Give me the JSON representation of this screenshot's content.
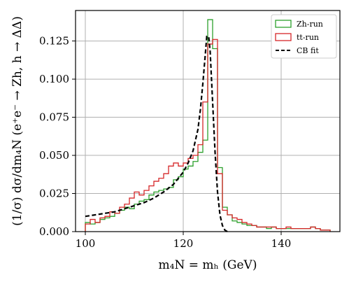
{
  "chart_data": {
    "type": "line",
    "xlabel": "m₄N = mₕ (GeV)",
    "ylabel": "(1/σ) dσ/dm₄N (e⁺e⁻ → Zh, h → ΔΔ)",
    "xlim": [
      98,
      152
    ],
    "ylim": [
      0,
      0.145
    ],
    "x_ticks": [
      100,
      120,
      140
    ],
    "x_tick_labels": [
      "100",
      "120",
      "140"
    ],
    "y_ticks": [
      0,
      0.025,
      0.05,
      0.075,
      0.1,
      0.125
    ],
    "y_tick_labels": [
      "0.000",
      "0.025",
      "0.050",
      "0.075",
      "0.100",
      "0.125"
    ],
    "grid": true,
    "legend_position": "top-right",
    "bin_width": 1,
    "bin_start": 100,
    "colors": {
      "zh": "#2ca02c",
      "tt": "#d62728",
      "cb": "#000000"
    },
    "series": [
      {
        "name": "Zh-run",
        "style": "step",
        "values": [
          0.006,
          0.005,
          0.006,
          0.008,
          0.009,
          0.01,
          0.012,
          0.014,
          0.016,
          0.015,
          0.018,
          0.02,
          0.021,
          0.024,
          0.026,
          0.027,
          0.028,
          0.029,
          0.034,
          0.036,
          0.041,
          0.043,
          0.046,
          0.052,
          0.06,
          0.139,
          0.12,
          0.042,
          0.016,
          0.011,
          0.007,
          0.006,
          0.005,
          0.004,
          0.004,
          0.003,
          0.003,
          0.002,
          0.003,
          0.002,
          0.002,
          0.002,
          0.002,
          0.002,
          0.002,
          0.002,
          0.003,
          0.002,
          0.001,
          0.001
        ]
      },
      {
        "name": "tt-run",
        "style": "step",
        "values": [
          0.005,
          0.008,
          0.006,
          0.009,
          0.01,
          0.013,
          0.012,
          0.016,
          0.018,
          0.022,
          0.026,
          0.024,
          0.027,
          0.03,
          0.033,
          0.035,
          0.038,
          0.043,
          0.045,
          0.043,
          0.045,
          0.048,
          0.05,
          0.057,
          0.085,
          0.123,
          0.126,
          0.038,
          0.014,
          0.011,
          0.009,
          0.008,
          0.006,
          0.005,
          0.004,
          0.003,
          0.003,
          0.003,
          0.003,
          0.002,
          0.002,
          0.003,
          0.002,
          0.002,
          0.002,
          0.002,
          0.003,
          0.002,
          0.001,
          0.001
        ]
      },
      {
        "name": "CB fit",
        "style": "dashed",
        "x": [
          100,
          102,
          104,
          106,
          108,
          110,
          112,
          114,
          116,
          118,
          119,
          120,
          121,
          122,
          123,
          123.5,
          124,
          124.5,
          124.8,
          125.2,
          125.5,
          126,
          126.5,
          127,
          127.5,
          128,
          128.5,
          129
        ],
        "y": [
          0.01,
          0.011,
          0.012,
          0.013,
          0.015,
          0.017,
          0.019,
          0.022,
          0.026,
          0.031,
          0.035,
          0.039,
          0.045,
          0.053,
          0.067,
          0.08,
          0.097,
          0.116,
          0.128,
          0.128,
          0.118,
          0.085,
          0.052,
          0.026,
          0.011,
          0.004,
          0.001,
          0.0
        ]
      }
    ]
  }
}
